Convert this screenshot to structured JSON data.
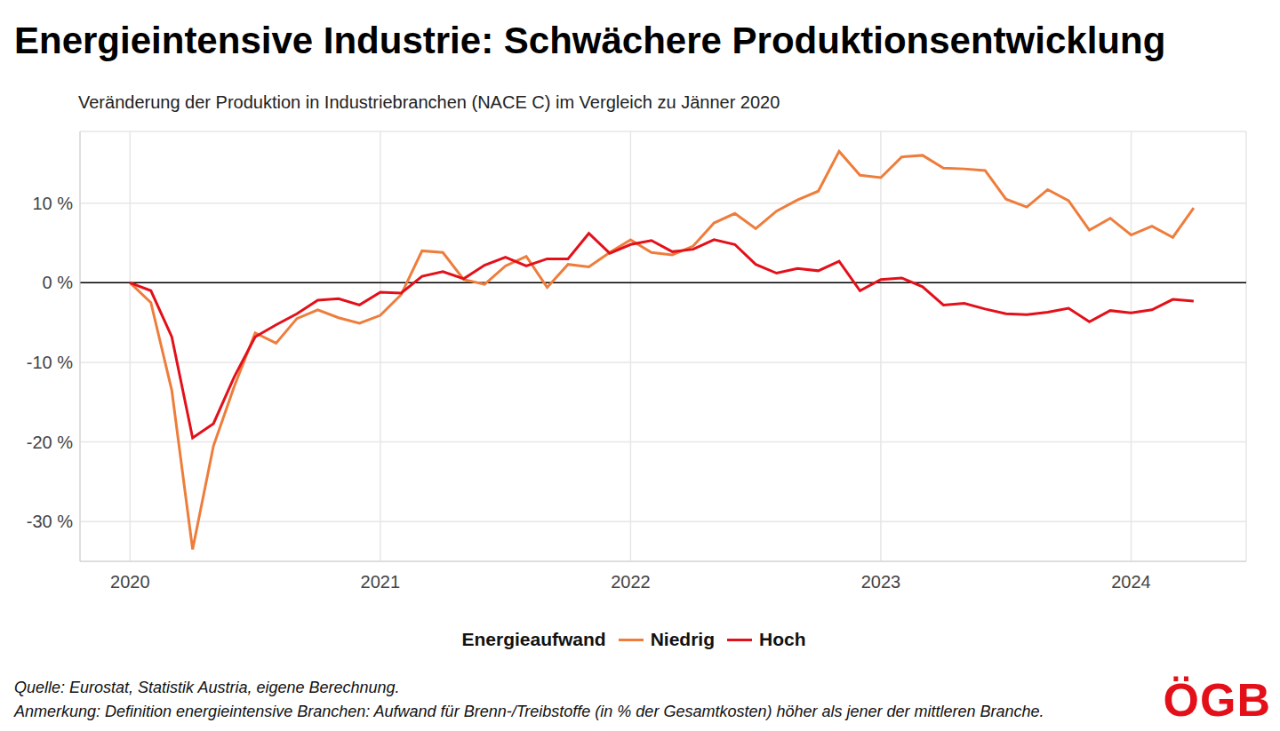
{
  "chart_data": {
    "type": "line",
    "title": "Energieintensive Industrie: Schwächere Produktionsentwicklung",
    "subtitle": "Veränderung der Produktion in Industriebranchen (NACE C) im Vergleich zu Jänner 2020",
    "legend_title": "Energieaufwand",
    "source": "Quelle: Eurostat, Statistik Austria, eigene Berechnung.",
    "note": "Anmerkung: Definition energieintensive Branchen: Aufwand für Brenn-/Treibstoffe (in % der Gesamtkosten) höher als jener der mittleren Branche.",
    "logo": "ÖGB",
    "x": [
      2020,
      2020.0833,
      2020.1667,
      2020.25,
      2020.3333,
      2020.4167,
      2020.5,
      2020.5833,
      2020.6667,
      2020.75,
      2020.8333,
      2020.9167,
      2021,
      2021.0833,
      2021.1667,
      2021.25,
      2021.3333,
      2021.4167,
      2021.5,
      2021.5833,
      2021.6667,
      2021.75,
      2021.8333,
      2021.9167,
      2022,
      2022.0833,
      2022.1667,
      2022.25,
      2022.3333,
      2022.4167,
      2022.5,
      2022.5833,
      2022.6667,
      2022.75,
      2022.8333,
      2022.9167,
      2023,
      2023.0833,
      2023.1667,
      2023.25,
      2023.3333,
      2023.4167,
      2023.5,
      2023.5833,
      2023.6667,
      2023.75,
      2023.8333,
      2023.9167,
      2024,
      2024.0833,
      2024.1667,
      2024.25
    ],
    "series": [
      {
        "name": "Niedrig",
        "color": "#ee7d3b",
        "values": [
          0,
          -2.5,
          -13.5,
          -33.5,
          -20.5,
          -13,
          -6.3,
          -7.6,
          -4.5,
          -3.4,
          -4.4,
          -5.1,
          -4.1,
          -1.5,
          4.0,
          3.8,
          0.4,
          -0.2,
          2.1,
          3.3,
          -0.6,
          2.3,
          2.0,
          3.8,
          5.4,
          3.8,
          3.5,
          4.6,
          7.5,
          8.7,
          6.8,
          9.0,
          10.4,
          11.5,
          16.5,
          13.5,
          13.2,
          15.8,
          16.0,
          14.4,
          14.3,
          14.1,
          10.5,
          9.5,
          11.7,
          10.3,
          6.6,
          8.1,
          6.0,
          7.1,
          5.7,
          9.4
        ]
      },
      {
        "name": "Hoch",
        "color": "#e3101a",
        "values": [
          0,
          -1.0,
          -6.8,
          -19.5,
          -17.7,
          -11.8,
          -6.8,
          -5.3,
          -3.9,
          -2.2,
          -2.0,
          -2.8,
          -1.2,
          -1.3,
          0.8,
          1.4,
          0.5,
          2.2,
          3.2,
          2.1,
          3.0,
          3.0,
          6.2,
          3.7,
          4.8,
          5.3,
          3.9,
          4.2,
          5.4,
          4.8,
          2.3,
          1.2,
          1.8,
          1.5,
          2.7,
          -1.0,
          0.4,
          0.6,
          -0.5,
          -2.8,
          -2.6,
          -3.3,
          -3.9,
          -4.0,
          -3.7,
          -3.2,
          -4.9,
          -3.5,
          -3.8,
          -3.4,
          -2.1,
          -2.3
        ]
      }
    ],
    "xlim": [
      2019.8,
      2024.46
    ],
    "xticks": [
      2020,
      2021,
      2022,
      2023,
      2024
    ],
    "ylim": [
      -35,
      19
    ],
    "yticks": [
      {
        "value": -30,
        "label": "-30 %"
      },
      {
        "value": -20,
        "label": "-20 %"
      },
      {
        "value": -10,
        "label": "-10 %"
      },
      {
        "value": 0,
        "label": "0 %"
      },
      {
        "value": 10,
        "label": "10 %"
      }
    ],
    "baseline": 0,
    "grid": true,
    "legend": "bottom"
  }
}
